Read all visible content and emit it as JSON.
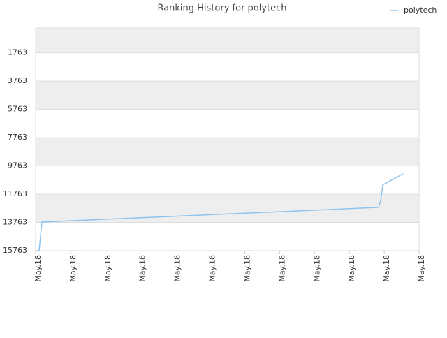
{
  "chart_data": {
    "type": "line",
    "title": "Ranking History for polytech",
    "x": [
      0.02,
      0.1,
      0.18,
      9.84,
      9.9,
      9.96,
      10.54
    ],
    "series": [
      {
        "name": "polytech",
        "color": "#8ec3ee",
        "values": [
          15763,
          15763,
          13735,
          12696,
          12200,
          11113,
          10321
        ]
      }
    ],
    "xlim": [
      0,
      11
    ],
    "xticks": [
      {
        "value": 0,
        "label": "May.18"
      },
      {
        "value": 1,
        "label": "May.18"
      },
      {
        "value": 2,
        "label": "May.18"
      },
      {
        "value": 3,
        "label": "May.18"
      },
      {
        "value": 4,
        "label": "May.18"
      },
      {
        "value": 5,
        "label": "May.18"
      },
      {
        "value": 6,
        "label": "May.18"
      },
      {
        "value": 7,
        "label": "May.18"
      },
      {
        "value": 8,
        "label": "May.18"
      },
      {
        "value": 9,
        "label": "May.18"
      },
      {
        "value": 10,
        "label": "May.18"
      },
      {
        "value": 11,
        "label": "May.18"
      }
    ],
    "ylim": [
      15763,
      0
    ],
    "yticks": [
      1763,
      3763,
      5763,
      7763,
      9763,
      11763,
      13763,
      15763
    ],
    "grid": true,
    "legend": "top-right"
  }
}
